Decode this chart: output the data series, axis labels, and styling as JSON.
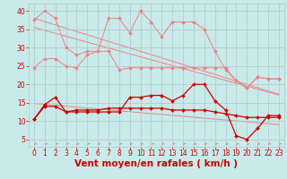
{
  "bg_color": "#c8eaea",
  "grid_color": "#b0c8c8",
  "xlabel": "Vent moyen/en rafales ( km/h )",
  "xlabel_color": "#cc0000",
  "xlabel_fontsize": 7.5,
  "tick_color": "#cc0000",
  "tick_fontsize": 5.5,
  "xlim": [
    -0.5,
    23.5
  ],
  "ylim": [
    3,
    42
  ],
  "yticks": [
    5,
    10,
    15,
    20,
    25,
    30,
    35,
    40
  ],
  "xticks": [
    0,
    1,
    2,
    3,
    4,
    5,
    6,
    7,
    8,
    9,
    10,
    11,
    12,
    13,
    14,
    15,
    16,
    17,
    18,
    19,
    20,
    21,
    22,
    23
  ],
  "line_pink1_y": [
    37.5,
    40.0,
    38.0,
    30.0,
    28.0,
    29.0,
    29.0,
    38.0,
    38.0,
    34.0,
    40.0,
    37.0,
    33.0,
    37.0,
    37.0,
    37.0,
    35.0,
    29.0,
    24.0,
    21.0,
    19.0,
    22.0,
    21.5,
    21.5
  ],
  "line_pink2_y": [
    24.5,
    27.0,
    27.0,
    25.0,
    24.5,
    28.0,
    29.0,
    29.0,
    24.0,
    24.5,
    24.5,
    24.5,
    24.5,
    24.5,
    24.5,
    24.5,
    24.5,
    24.5,
    24.5,
    21.0,
    19.0,
    22.0,
    21.5,
    21.5
  ],
  "line_regr1_y": [
    38.0,
    37.1,
    36.2,
    35.3,
    34.4,
    33.5,
    32.6,
    31.7,
    30.8,
    29.9,
    29.0,
    28.1,
    27.2,
    26.3,
    25.4,
    24.5,
    23.6,
    22.7,
    21.8,
    20.9,
    20.0,
    19.1,
    18.2,
    17.3
  ],
  "line_regr2_y": [
    35.5,
    34.7,
    33.9,
    33.1,
    32.3,
    31.5,
    30.7,
    29.9,
    29.1,
    28.3,
    27.5,
    26.7,
    25.9,
    25.1,
    24.3,
    23.5,
    22.7,
    21.9,
    21.1,
    20.3,
    19.5,
    18.7,
    17.9,
    17.1
  ],
  "line_regr3_y": [
    14.8,
    14.55,
    14.3,
    14.05,
    13.8,
    13.55,
    13.3,
    13.05,
    12.8,
    12.55,
    12.3,
    12.05,
    11.8,
    11.55,
    11.3,
    11.05,
    10.8,
    10.55,
    10.3,
    10.05,
    9.8,
    9.55,
    9.3,
    9.05
  ],
  "line_red1_y": [
    10.5,
    14.5,
    16.5,
    12.5,
    12.5,
    12.5,
    12.5,
    12.5,
    12.5,
    16.5,
    16.5,
    17.0,
    17.0,
    15.5,
    17.0,
    20.0,
    20.0,
    15.5,
    13.0,
    6.0,
    5.0,
    8.0,
    11.5,
    11.5
  ],
  "line_red2_y": [
    10.5,
    14.0,
    14.0,
    12.5,
    13.0,
    13.0,
    13.0,
    13.5,
    13.5,
    13.5,
    13.5,
    13.5,
    13.5,
    13.0,
    13.0,
    13.0,
    13.0,
    12.5,
    12.0,
    11.5,
    11.0,
    11.0,
    11.0,
    11.0
  ],
  "color_pink": "#f08080",
  "color_red": "#cc0000"
}
